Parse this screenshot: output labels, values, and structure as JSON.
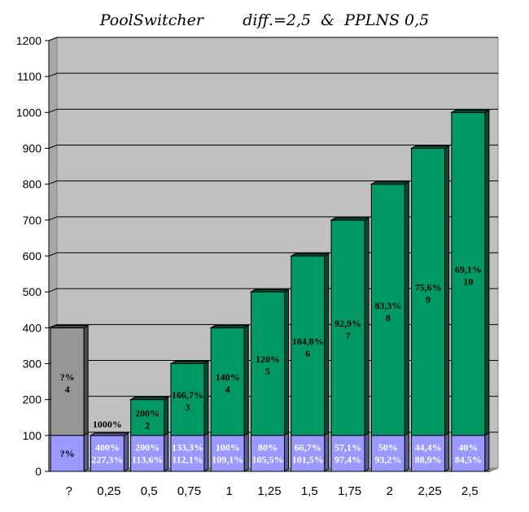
{
  "chart_data": {
    "type": "bar",
    "title": "PoolSwitcher        diff.=2,5  &  PPLNS 0,5",
    "ylim": [
      0,
      1200
    ],
    "yticks": [
      "0",
      "100",
      "200",
      "300",
      "400",
      "500",
      "600",
      "700",
      "800",
      "900",
      "1000",
      "1100",
      "1200"
    ],
    "grid": true,
    "legend": "none",
    "categories": [
      "?",
      "0,25",
      "0,5",
      "0,75",
      "1",
      "1,25",
      "1,5",
      "1,75",
      "2",
      "2,25",
      "2,5"
    ],
    "series": [
      {
        "values": [
          400,
          100,
          200,
          300,
          400,
          500,
          600,
          700,
          800,
          900,
          1000
        ]
      },
      {
        "values": [
          100,
          100,
          100,
          100,
          100,
          100,
          100,
          100,
          100,
          100,
          100
        ]
      }
    ],
    "bar_labels": [
      [
        "?%",
        "4"
      ],
      [
        "1000%"
      ],
      [
        "200%",
        "2"
      ],
      [
        "166,7%",
        "3"
      ],
      [
        "140%",
        "4"
      ],
      [
        "120%",
        "5"
      ],
      [
        "104,8%",
        "6"
      ],
      [
        "92,9%",
        "7"
      ],
      [
        "83,3%",
        "8"
      ],
      [
        "75,6%",
        "9"
      ],
      [
        "69,1%",
        "10"
      ]
    ],
    "base_labels": [
      [
        "?%"
      ],
      [
        "400%",
        "227,3%"
      ],
      [
        "200%",
        "113,6%"
      ],
      [
        "133,3%",
        "112,1%"
      ],
      [
        "100%",
        "109,1%"
      ],
      [
        "80%",
        "105,5%"
      ],
      [
        "66,7%",
        "101,5%"
      ],
      [
        "57,1%",
        "97,4%"
      ],
      [
        "50%",
        "93,2%"
      ],
      [
        "44,4%",
        "88,9%"
      ],
      [
        "40%",
        "84,5%"
      ]
    ],
    "colors": {
      "plot_bg": "#c0c0c0",
      "bar": "#009966",
      "bar_side": "#004d33",
      "first_bar": "#969696",
      "first_bar_side": "#4a4a4a",
      "base": "#9999ff",
      "base_side": "#5c5c99",
      "label_dark": "#000000",
      "label_light": "#ffffff"
    }
  }
}
